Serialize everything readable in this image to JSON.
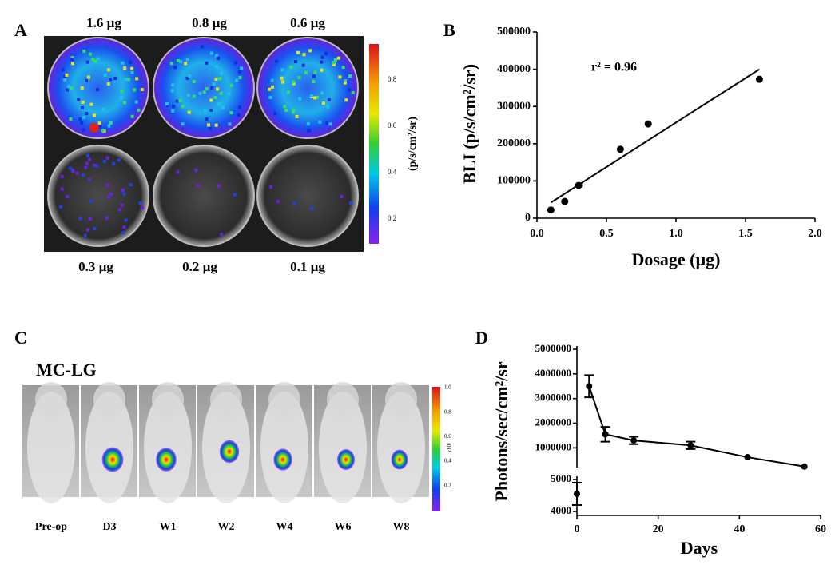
{
  "figure": {
    "A": {
      "letter": "A",
      "top_labels": [
        "1.6 µg",
        "0.8 µg",
        "0.6 µg"
      ],
      "bottom_labels": [
        "0.3 µg",
        "0.2 µg",
        "0.1 µg"
      ],
      "colorbar_ticks": [
        "0.8",
        "0.6",
        "0.4",
        "0.2"
      ],
      "colorbar_label": "(p/s/cm²/sr)"
    },
    "C": {
      "letter": "C",
      "title": "MC-LG",
      "frame_labels": [
        "Pre-op",
        "D3",
        "W1",
        "W2",
        "W4",
        "W6",
        "W8"
      ],
      "colorbar_ticks": [
        "1.0",
        "0.8",
        "0.6",
        "0.4",
        "0.2"
      ],
      "colorbar_unit": "x10⁶"
    }
  },
  "chart_data": [
    {
      "type": "scatter",
      "panel_label": "B",
      "x_label": "Dosage (µg)",
      "y_label": "BLI (p/s/cm²/sr)",
      "annotation": "r² = 0.96",
      "xlim": [
        0,
        2
      ],
      "xticks": [
        {
          "value": 0,
          "label": "0.0"
        },
        {
          "value": 0.5,
          "label": "0.5"
        },
        {
          "value": 1,
          "label": "1.0"
        },
        {
          "value": 1.5,
          "label": "1.5"
        },
        {
          "value": 2,
          "label": "2.0"
        }
      ],
      "ylim": [
        0,
        500000
      ],
      "yticks": [
        0,
        100000,
        200000,
        300000,
        400000,
        500000
      ],
      "series": [
        {
          "mode": "markers",
          "color": "#000000",
          "x": [
            0.1,
            0.2,
            0.3,
            0.6,
            0.8,
            1.6
          ],
          "values": [
            22000,
            45000,
            88000,
            185000,
            253000,
            373000
          ]
        },
        {
          "mode": "line",
          "color": "#000000",
          "x": [
            0.1,
            1.6
          ],
          "values": [
            42000,
            400000
          ]
        }
      ]
    },
    {
      "type": "line",
      "panel_label": "D",
      "x_label": "Days",
      "y_label": "Photons/sec/cm²/sr",
      "xlim": [
        0,
        60
      ],
      "xticks": [
        0,
        20,
        40,
        60
      ],
      "y_segments": [
        {
          "ylim": [
            4000,
            5000
          ],
          "yticks": [
            4000,
            5000
          ]
        },
        {
          "ylim": [
            200000,
            5000000
          ],
          "yticks": [
            1000000,
            2000000,
            3000000,
            4000000,
            5000000
          ]
        }
      ],
      "series": [
        {
          "color": "#000000",
          "x": [
            0
          ],
          "values": [
            4550
          ],
          "errors": [
            350
          ]
        },
        {
          "color": "#000000",
          "x": [
            3,
            7,
            14,
            28,
            42,
            56
          ],
          "values": [
            3500000,
            1550000,
            1300000,
            1100000,
            620000,
            240000
          ],
          "errors": [
            450000,
            300000,
            150000,
            150000,
            null,
            null
          ]
        }
      ]
    }
  ]
}
